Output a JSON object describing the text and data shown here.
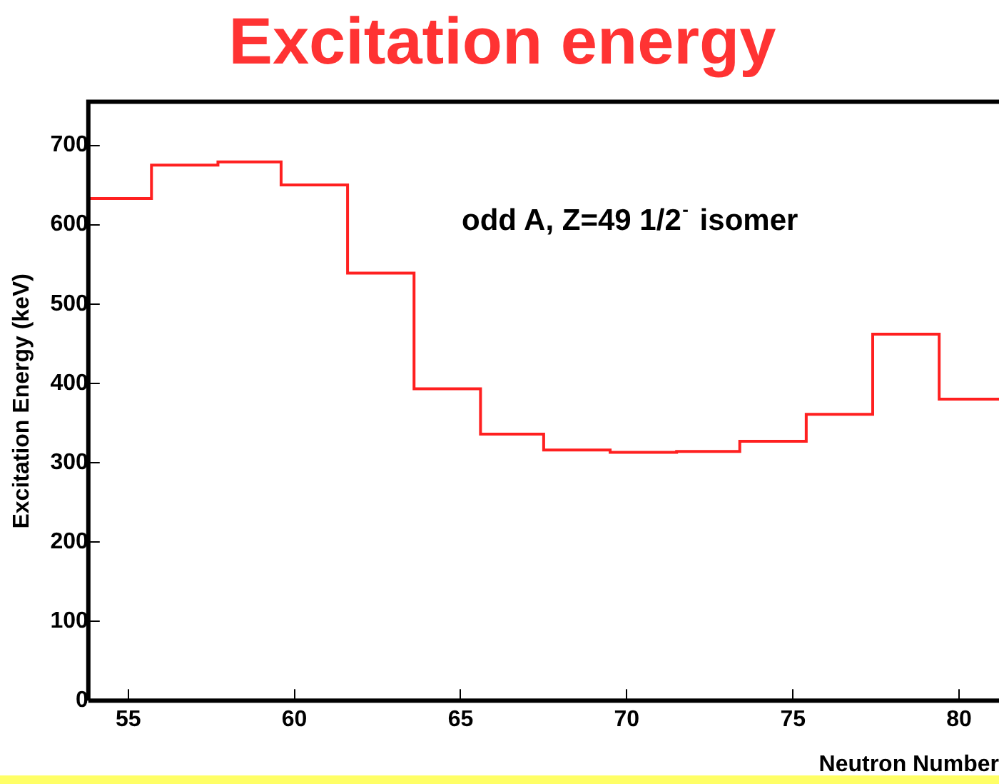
{
  "chart_data": {
    "type": "histogram",
    "title": "Excitation energy",
    "xlabel": "Neutron Number",
    "ylabel": "Excitation Energy (keV)",
    "annotations": [
      "odd A, Z=49 1/2$^{-}$ isomer"
    ],
    "bins": [
      53.8,
      55.7,
      57.7,
      59.6,
      61.6,
      63.6,
      65.6,
      67.5,
      69.5,
      71.5,
      73.4,
      75.4,
      77.4,
      79.4,
      81.2
    ],
    "values": [
      633,
      675,
      679,
      650,
      539,
      393,
      336,
      316,
      313,
      314,
      327,
      361,
      462,
      380
    ],
    "color": "#ff2020",
    "xlim": [
      53.8,
      81.2
    ],
    "xticks": [
      55,
      60,
      65,
      70,
      75,
      80
    ],
    "ylim": [
      0,
      755
    ],
    "yticks": [
      0,
      100,
      200,
      300,
      400,
      500,
      600,
      700
    ]
  }
}
